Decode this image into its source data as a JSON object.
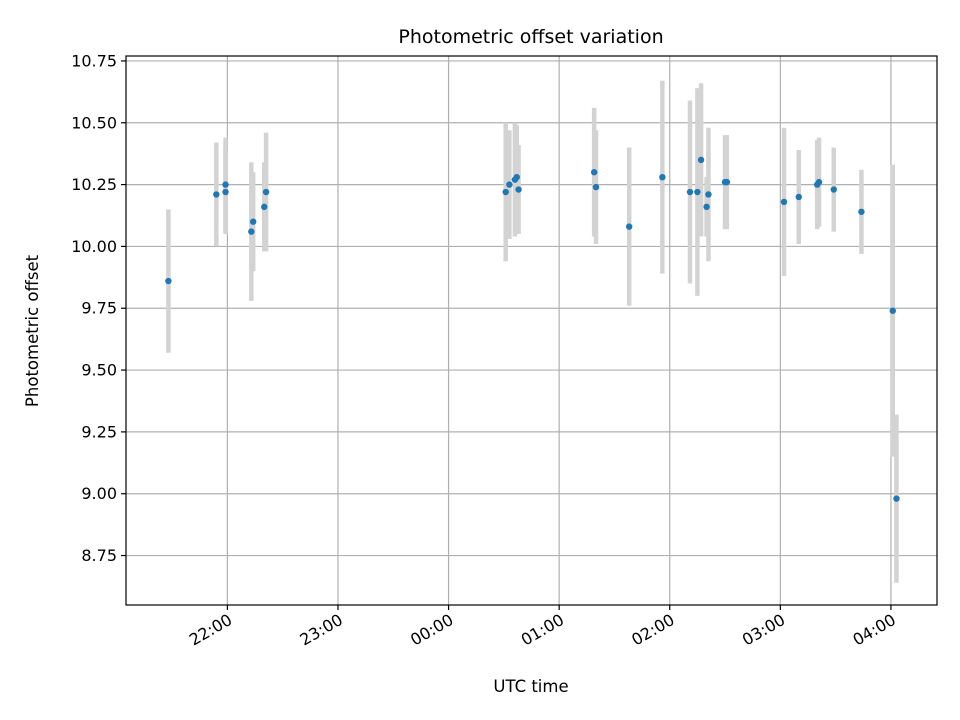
{
  "chart_data": {
    "type": "scatter",
    "title": "Photometric offset variation",
    "xlabel": "UTC time",
    "ylabel": "Photometric offset",
    "x_unit": "UTC time (HH:MM)",
    "xlim": [
      "21:05",
      "04:25"
    ],
    "ylim": [
      8.55,
      10.77
    ],
    "x_ticks": [
      "22:00",
      "23:00",
      "00:00",
      "01:00",
      "02:00",
      "03:00",
      "04:00"
    ],
    "y_ticks": [
      "8.75",
      "9.00",
      "9.25",
      "9.50",
      "9.75",
      "10.00",
      "10.25",
      "10.50",
      "10.75"
    ],
    "grid": true,
    "colors": {
      "point": "#1f77b4",
      "errorbar": "#d3d3d3",
      "grid": "#b0b0b0"
    },
    "series": [
      {
        "points": [
          {
            "x": "21:28",
            "y": 9.86,
            "err": 0.29
          },
          {
            "x": "21:54",
            "y": 10.21,
            "err": 0.21
          },
          {
            "x": "21:59",
            "y": 10.22,
            "err": 0.17
          },
          {
            "x": "21:59",
            "y": 10.25,
            "err": 0.19
          },
          {
            "x": "22:13",
            "y": 10.06,
            "err": 0.28
          },
          {
            "x": "22:14",
            "y": 10.1,
            "err": 0.2
          },
          {
            "x": "22:20",
            "y": 10.16,
            "err": 0.18
          },
          {
            "x": "22:21",
            "y": 10.22,
            "err": 0.24
          },
          {
            "x": "00:31",
            "y": 10.22,
            "err": 0.28
          },
          {
            "x": "00:33",
            "y": 10.25,
            "err": 0.22
          },
          {
            "x": "00:36",
            "y": 10.27,
            "err": 0.23
          },
          {
            "x": "00:37",
            "y": 10.28,
            "err": 0.21
          },
          {
            "x": "00:38",
            "y": 10.23,
            "err": 0.18
          },
          {
            "x": "01:19",
            "y": 10.3,
            "err": 0.26
          },
          {
            "x": "01:20",
            "y": 10.24,
            "err": 0.23
          },
          {
            "x": "01:38",
            "y": 10.08,
            "err": 0.32
          },
          {
            "x": "01:56",
            "y": 10.28,
            "err": 0.39
          },
          {
            "x": "02:11",
            "y": 10.22,
            "err": 0.37
          },
          {
            "x": "02:15",
            "y": 10.22,
            "err": 0.42
          },
          {
            "x": "02:17",
            "y": 10.35,
            "err": 0.31
          },
          {
            "x": "02:20",
            "y": 10.16,
            "err": 0.12
          },
          {
            "x": "02:21",
            "y": 10.21,
            "err": 0.27
          },
          {
            "x": "02:30",
            "y": 10.26,
            "err": 0.19
          },
          {
            "x": "02:31",
            "y": 10.26,
            "err": 0.19
          },
          {
            "x": "03:02",
            "y": 10.18,
            "err": 0.3
          },
          {
            "x": "03:10",
            "y": 10.2,
            "err": 0.19
          },
          {
            "x": "03:20",
            "y": 10.25,
            "err": 0.18
          },
          {
            "x": "03:21",
            "y": 10.26,
            "err": 0.18
          },
          {
            "x": "03:29",
            "y": 10.23,
            "err": 0.17
          },
          {
            "x": "03:44",
            "y": 10.14,
            "err": 0.17
          },
          {
            "x": "04:01",
            "y": 9.74,
            "err": 0.59
          },
          {
            "x": "04:03",
            "y": 8.98,
            "err": 0.34
          }
        ]
      }
    ]
  }
}
